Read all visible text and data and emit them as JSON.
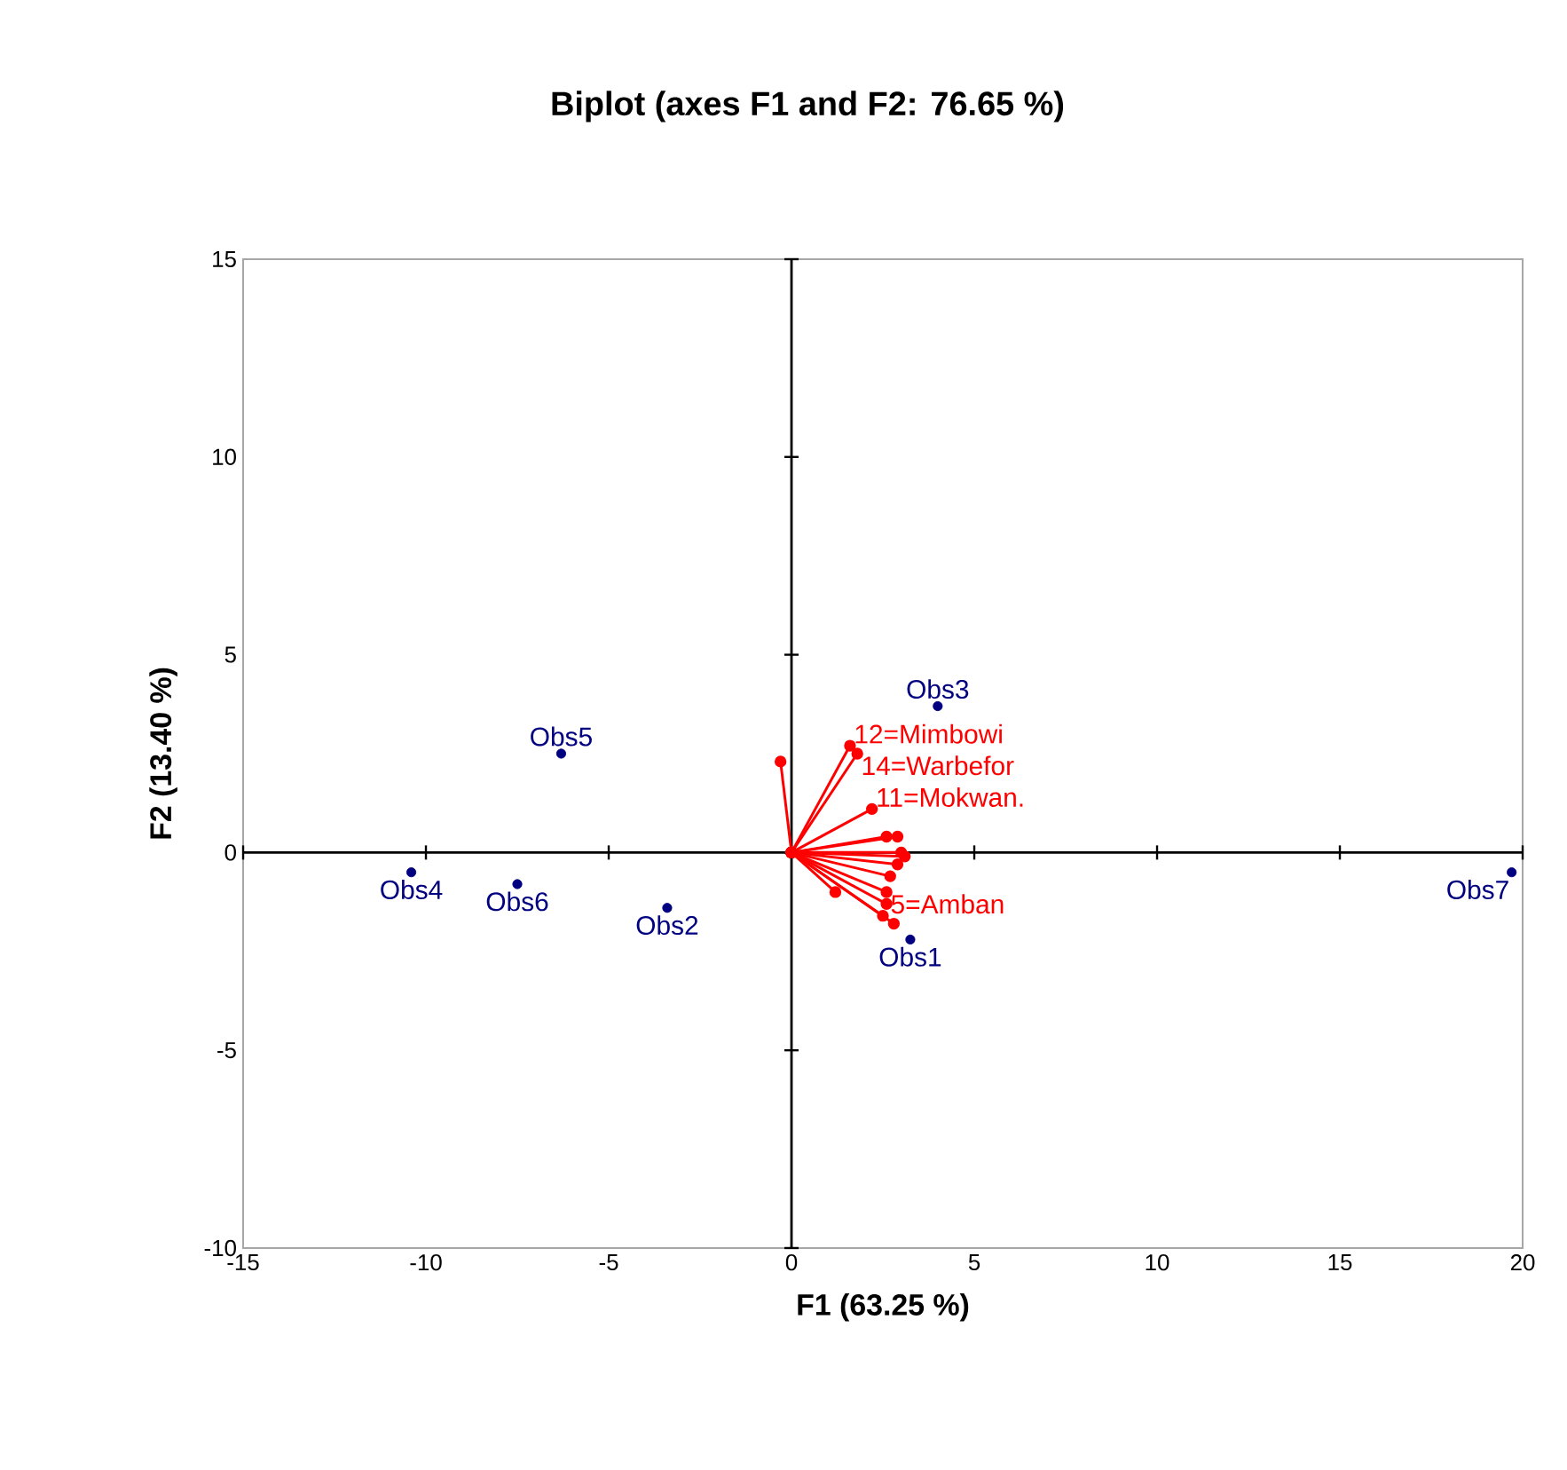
{
  "chart_data": {
    "type": "scatter",
    "title": "Biplot (axes F1 and F2: 76.65 %)",
    "xlabel": "F1 (63.25 %)",
    "ylabel": "F2 (13.40 %)",
    "xlim": [
      -15,
      20
    ],
    "ylim": [
      -10,
      15
    ],
    "xticks": [
      -15,
      -10,
      -5,
      0,
      5,
      10,
      15,
      20
    ],
    "yticks": [
      -10,
      -5,
      0,
      5,
      10,
      15
    ],
    "marker": "circle",
    "series": [
      {
        "color": "#000080",
        "x": [
          3.25,
          -3.4,
          4.0,
          -10.4,
          -6.3,
          -7.5,
          19.7
        ],
        "values": [
          -2.2,
          -1.4,
          3.7,
          -0.5,
          2.5,
          -0.8,
          -0.5
        ]
      },
      {
        "type": "line",
        "color": "#ff0000",
        "x": [
          0,
          -0.3
        ],
        "values": [
          0,
          2.3
        ]
      },
      {
        "type": "line",
        "color": "#ff0000",
        "x": [
          0,
          1.6
        ],
        "values": [
          0,
          2.7
        ]
      },
      {
        "type": "line",
        "color": "#ff0000",
        "x": [
          0,
          1.8
        ],
        "values": [
          0,
          2.5
        ]
      },
      {
        "type": "line",
        "color": "#ff0000",
        "x": [
          0,
          2.2
        ],
        "values": [
          0,
          1.1
        ]
      },
      {
        "type": "line",
        "color": "#ff0000",
        "x": [
          0,
          2.6
        ],
        "values": [
          0,
          0.4
        ]
      },
      {
        "type": "line",
        "color": "#ff0000",
        "x": [
          0,
          2.9
        ],
        "values": [
          0,
          0.4
        ]
      },
      {
        "type": "line",
        "color": "#ff0000",
        "x": [
          0,
          3.0
        ],
        "values": [
          0,
          0
        ]
      },
      {
        "type": "line",
        "color": "#ff0000",
        "x": [
          0,
          3.1
        ],
        "values": [
          0,
          -0.1
        ]
      },
      {
        "type": "line",
        "color": "#ff0000",
        "x": [
          0,
          2.9
        ],
        "values": [
          0,
          -0.3
        ]
      },
      {
        "type": "line",
        "color": "#ff0000",
        "x": [
          0,
          2.7
        ],
        "values": [
          0,
          -0.6
        ]
      },
      {
        "type": "line",
        "color": "#ff0000",
        "x": [
          0,
          2.6
        ],
        "values": [
          0,
          -1.0
        ]
      },
      {
        "type": "line",
        "color": "#ff0000",
        "x": [
          0,
          1.2
        ],
        "values": [
          0,
          -1.0
        ]
      },
      {
        "type": "line",
        "color": "#ff0000",
        "x": [
          0,
          2.6
        ],
        "values": [
          0,
          -1.3
        ]
      },
      {
        "type": "line",
        "color": "#ff0000",
        "x": [
          0,
          2.5
        ],
        "values": [
          0,
          -1.6
        ]
      },
      {
        "type": "line",
        "color": "#ff0000",
        "x": [
          0,
          2.8
        ],
        "values": [
          0,
          -1.8
        ]
      }
    ],
    "annotations": [
      {
        "text": "Obs1",
        "x": 3.25,
        "y": -2.2
      },
      {
        "text": "Obs2",
        "x": -3.4,
        "y": -1.4
      },
      {
        "text": "Obs3",
        "x": 4.0,
        "y": 3.7
      },
      {
        "text": "Obs4",
        "x": -10.4,
        "y": -0.5
      },
      {
        "text": "Obs5",
        "x": -6.3,
        "y": 2.5
      },
      {
        "text": "Obs6",
        "x": -7.5,
        "y": -0.8
      },
      {
        "text": "Obs7",
        "x": 19.7,
        "y": -0.5
      },
      {
        "text": "12=Mimbowi",
        "x": 1.6,
        "y": 2.7
      },
      {
        "text": "14=Warbefor",
        "x": 1.8,
        "y": 2.5
      },
      {
        "text": "11=Mokwan.",
        "x": 2.2,
        "y": 1.1
      },
      {
        "text": "5=Amban",
        "x": 2.6,
        "y": -1.0
      }
    ]
  }
}
